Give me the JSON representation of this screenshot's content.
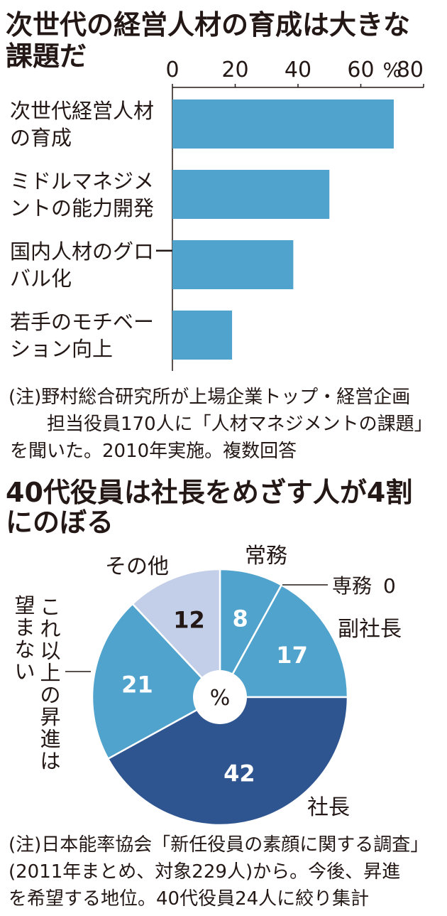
{
  "chart_data": [
    {
      "type": "bar",
      "orientation": "horizontal",
      "title_line1": "次世代の経営人材の育成は大きな",
      "title_line2": "課題だ",
      "unit": "%",
      "xlim": [
        0,
        80
      ],
      "ticks": [
        "0",
        "20",
        "40",
        "60",
        "80"
      ],
      "categories": [
        [
          "次世代経営人材",
          "の育成"
        ],
        [
          "ミドルマネジメ",
          "ントの能力開発"
        ],
        [
          "国内人材のグロー",
          "バル化"
        ],
        [
          "若手のモチベー",
          "ション向上"
        ]
      ],
      "values": [
        70.5,
        50,
        38.5,
        19
      ],
      "bar_color": "#4fa3cc",
      "note_lines": [
        "(注)野村総合研究所が上場企業トップ・経営企画",
        "担当役員170人に「人材マネジメントの課題」",
        "を聞いた。2010年実施。複数回答"
      ]
    },
    {
      "type": "pie",
      "title_line1": "40代役員は社長をめざす人が4割",
      "title_line2": "にのぼる",
      "unit": "%",
      "slices": [
        {
          "label": "常務",
          "value": 8,
          "value_text": "8",
          "color": "#4fa3cc"
        },
        {
          "label": "専務",
          "value": 0,
          "value_text": "0",
          "color": "#4fa3cc"
        },
        {
          "label": "副社長",
          "value": 17,
          "value_text": "17",
          "color": "#4fa3cc"
        },
        {
          "label": "社長",
          "value": 42,
          "value_text": "42",
          "color": "#2f5591"
        },
        {
          "label": "これ以上の昇進は望まない",
          "value": 21,
          "value_text": "21",
          "color": "#4fa3cc"
        },
        {
          "label": "その他",
          "value": 12,
          "value_text": "12",
          "color": "#c3cfe8"
        }
      ],
      "note_lines": [
        "(注)日本能率協会「新任役員の素顔に関する調査」",
        "(2011年まとめ、対象229人)から。今後、昇進",
        "を希望する地位。40代役員24人に絞り集計"
      ]
    }
  ]
}
